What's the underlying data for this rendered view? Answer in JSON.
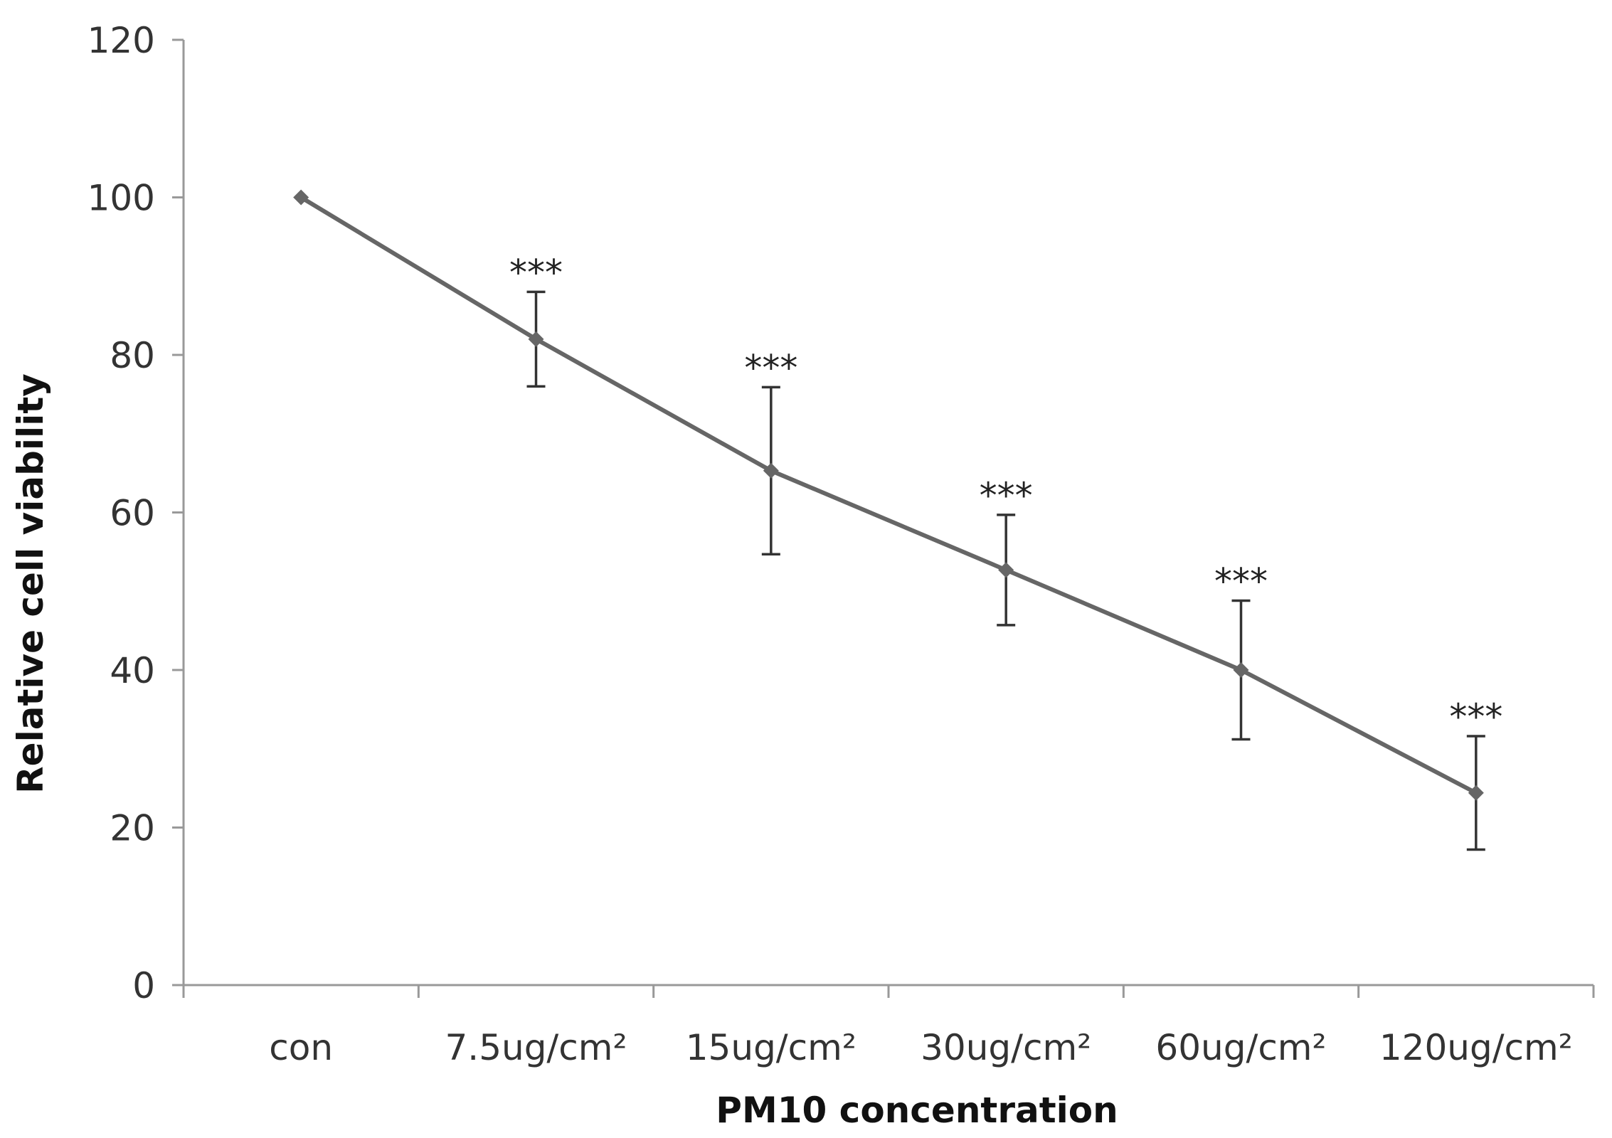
{
  "chart_data": {
    "type": "line",
    "title": "",
    "xlabel": "PM10 concentration",
    "ylabel": "Relative cell viability",
    "categories": [
      "con",
      "7.5ug/cm²",
      "15ug/cm²",
      "30ug/cm²",
      "60ug/cm²",
      "120ug/cm²"
    ],
    "series": [
      {
        "values": [
          100,
          82,
          65.3,
          52.7,
          40,
          24.4
        ],
        "error": [
          0,
          6,
          10.6,
          7,
          8.8,
          7.2
        ]
      }
    ],
    "significance": [
      "",
      "***",
      "***",
      "***",
      "***",
      "***"
    ],
    "ylim": [
      0,
      120
    ],
    "yticks": [
      0,
      20,
      40,
      60,
      80,
      100,
      120
    ],
    "grid": false,
    "legend": "none",
    "colors": {
      "line": "#666666",
      "marker": "#666666",
      "error_bar": "#333333",
      "axis": "#999999",
      "text": "#333333"
    }
  }
}
